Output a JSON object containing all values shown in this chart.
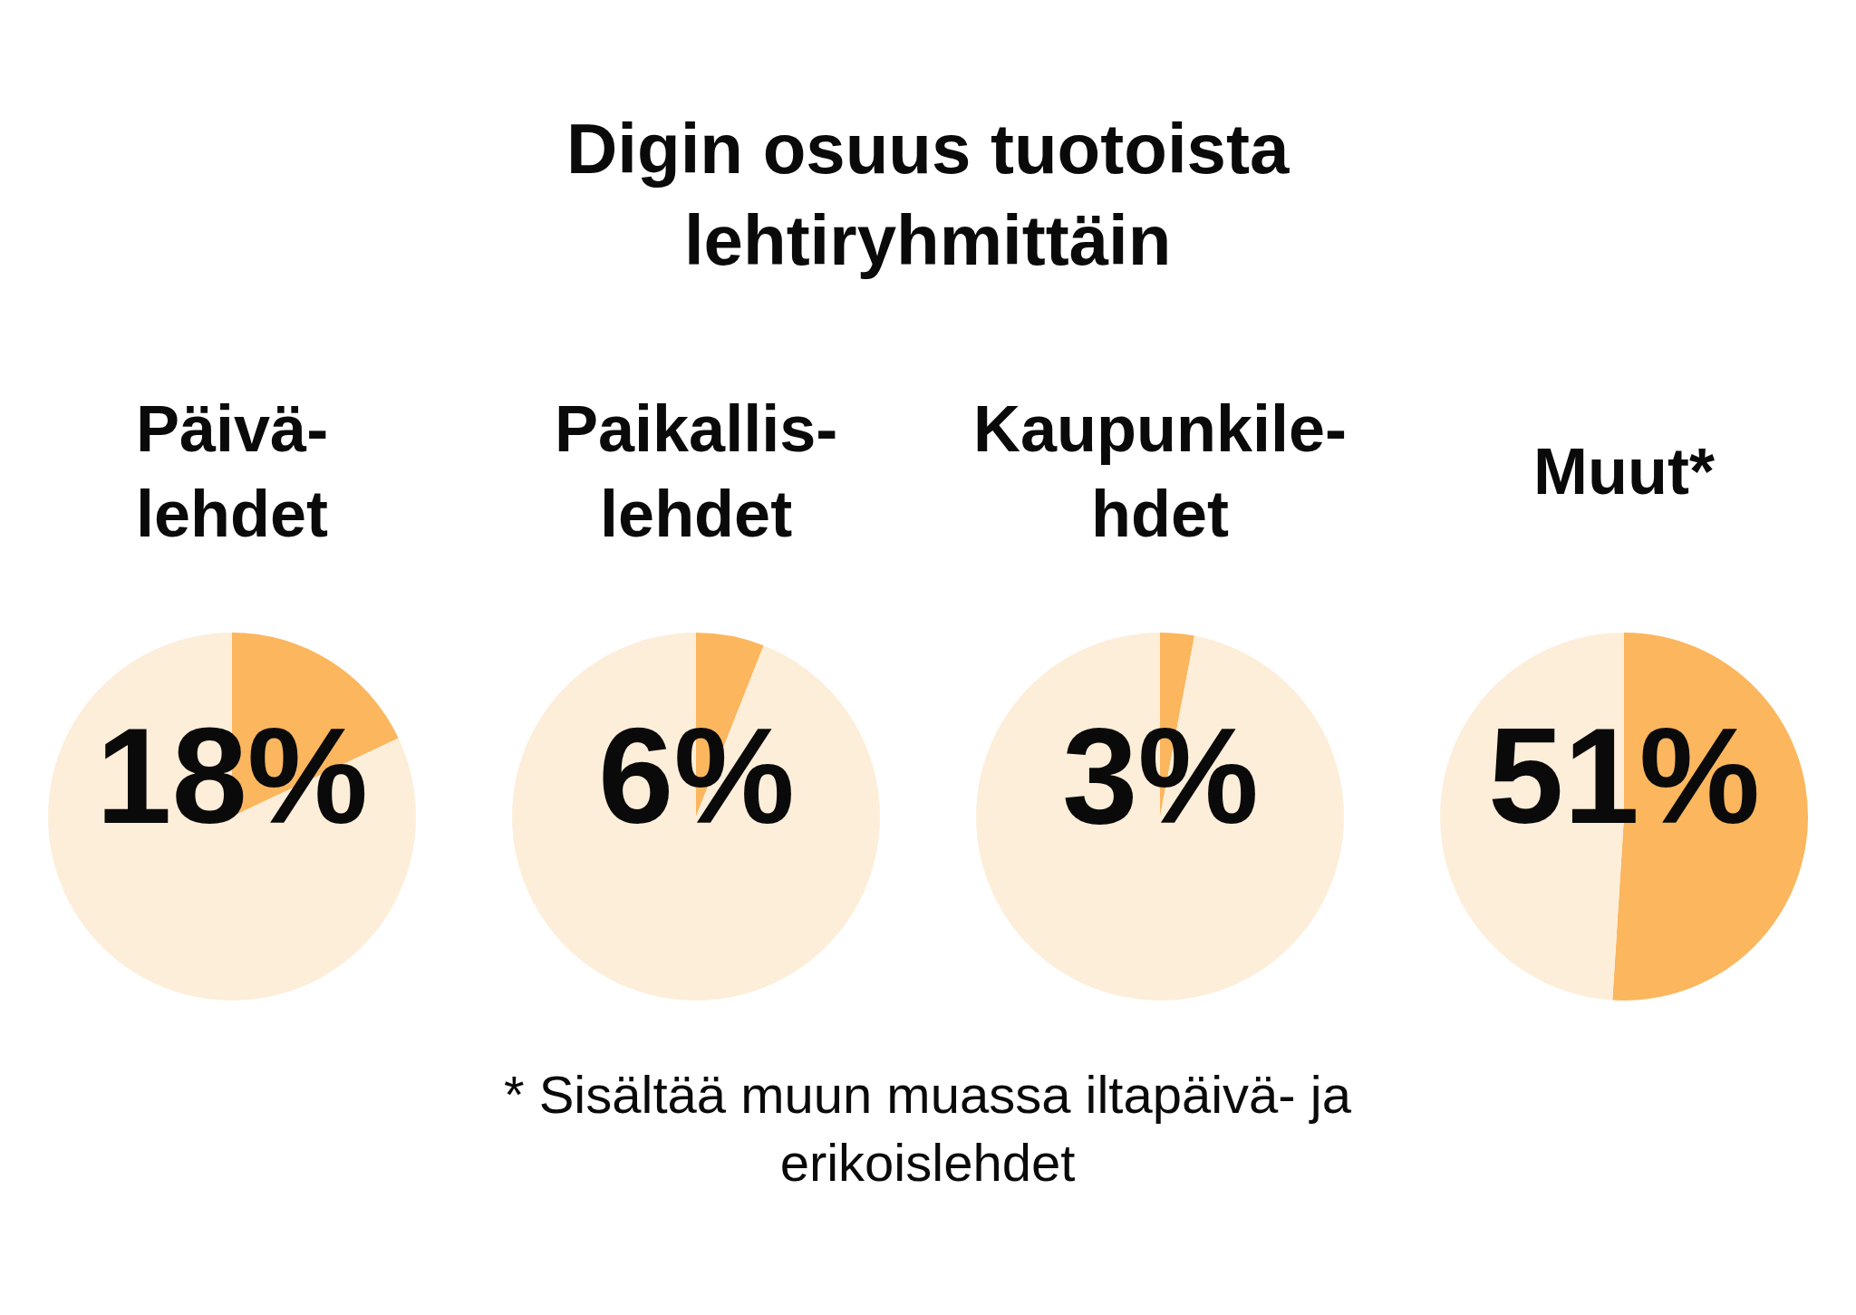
{
  "chart_data": [
    {
      "type": "other",
      "title": "Digin osuus tuotoista\nlehtiryhmittäin",
      "annotations": [
        "* Sisältää muun muassa iltapäivä- ja\nerikoislehdet"
      ]
    },
    {
      "type": "pie",
      "title": "Päivä-\nlehdet",
      "categories": [
        null,
        null
      ],
      "values": [
        18,
        82
      ],
      "colors": [
        "#fbb65e",
        "#fdeed9"
      ],
      "value_labels": [
        "18%",
        null
      ]
    },
    {
      "type": "pie",
      "title": "Paikallis-\nlehdet",
      "categories": [
        null,
        null
      ],
      "values": [
        6,
        94
      ],
      "colors": [
        "#fbb65e",
        "#fdeed9"
      ],
      "value_labels": [
        "6%",
        null
      ]
    },
    {
      "type": "pie",
      "title": "Kaupunkile-\nhdet",
      "categories": [
        null,
        null
      ],
      "values": [
        3,
        97
      ],
      "colors": [
        "#fbb65e",
        "#fdeed9"
      ],
      "value_labels": [
        "3%",
        null
      ]
    },
    {
      "type": "pie",
      "title": "Muut*",
      "categories": [
        null,
        null
      ],
      "values": [
        51,
        49
      ],
      "colors": [
        "#fbb65e",
        "#fdeed9"
      ],
      "value_labels": [
        "51%",
        null
      ]
    }
  ]
}
